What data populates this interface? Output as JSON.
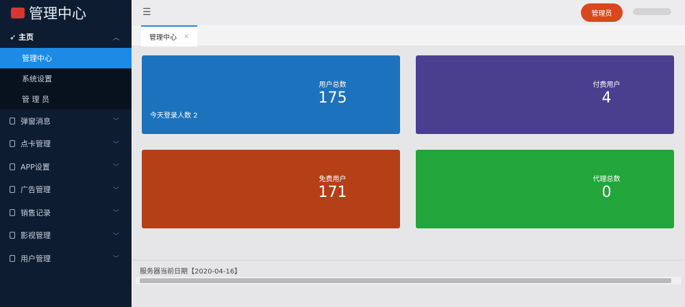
{
  "sidebar": {
    "logo": "管理中心",
    "home": {
      "label": "主页",
      "items": [
        "管理中心",
        "系统设置",
        "管 理 员"
      ]
    },
    "groups": [
      "弹窗消息",
      "点卡管理",
      "APP设置",
      "广告管理",
      "销售记录",
      "影视管理",
      "用户管理"
    ]
  },
  "header": {
    "admin_button": "管理员"
  },
  "tabs": [
    "管理中心"
  ],
  "cards": [
    {
      "label": "用户总数",
      "value": 175,
      "note": "今天登录人数 2",
      "color": "#1c72bd"
    },
    {
      "label": "付费用户",
      "value": 4,
      "color": "#4a3f8e"
    },
    {
      "label": "免费用户",
      "value": 171,
      "color": "#b53f16"
    },
    {
      "label": "代理总数",
      "value": 0,
      "color": "#22a53a"
    }
  ],
  "footer": {
    "server_date": "服务器当前日期【2020-04-16】"
  }
}
